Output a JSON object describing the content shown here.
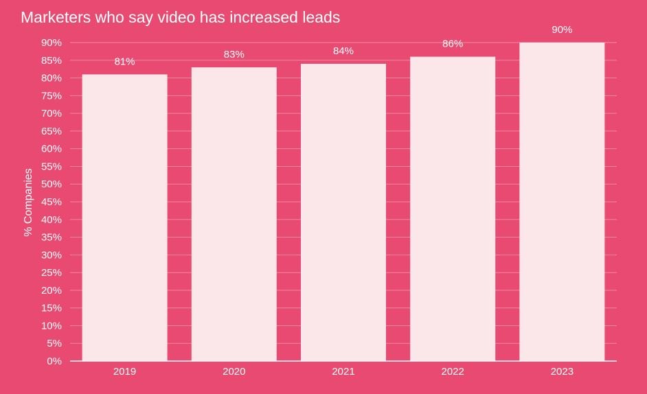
{
  "chart_data": {
    "type": "bar",
    "title": "Marketers who say video has increased leads",
    "ylabel": "% Companies",
    "xlabel": "",
    "categories": [
      "2019",
      "2020",
      "2021",
      "2022",
      "2023"
    ],
    "values": [
      81,
      83,
      84,
      86,
      90
    ],
    "value_labels": [
      "81%",
      "83%",
      "84%",
      "86%",
      "90%"
    ],
    "ylim": [
      0,
      90
    ],
    "yticks": [
      0,
      5,
      10,
      15,
      20,
      25,
      30,
      35,
      40,
      45,
      50,
      55,
      60,
      65,
      70,
      75,
      80,
      85,
      90
    ],
    "ytick_labels": [
      "0%",
      "5%",
      "10%",
      "15%",
      "20%",
      "25%",
      "30%",
      "35%",
      "40%",
      "45%",
      "50%",
      "55%",
      "60%",
      "65%",
      "70%",
      "75%",
      "80%",
      "85%",
      "90%"
    ],
    "grid": true,
    "legend": "none",
    "colors": {
      "background": "#e84a72",
      "bar": "#fbe6ea",
      "grid": "#f08aa3",
      "text": "#ffffff"
    }
  }
}
